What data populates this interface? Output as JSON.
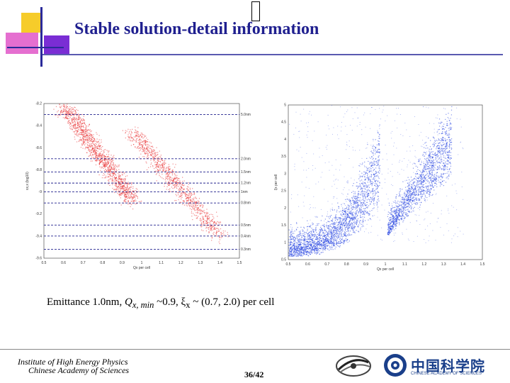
{
  "slide": {
    "title": "Stable solution-detail information",
    "caption_prefix": "Emittance 1.0nm, ",
    "caption_q": "Q",
    "caption_q_sub": "x, min",
    "caption_mid": " ~0.9, ξ",
    "caption_xi_sub": "x",
    "caption_suffix": " ~ (0.7, 2.0) per cell",
    "institute_line1": "Institute of High Energy Physics",
    "institute_line2": "Chinese Academy of Sciences",
    "page_number": "36/42",
    "cas_logo_text": "中国科学院",
    "cas_logo_subtext": "CHINESE ACADEMY OF SCIENCES"
  },
  "chart_data": [
    {
      "type": "scatter",
      "xlabel": "Qx per cell",
      "ylabel": "εx,x (log10)",
      "xlim": [
        0.5,
        1.5
      ],
      "ylim": [
        -9.6,
        -8.2
      ],
      "x_ticks": [
        "0.5",
        "0.6",
        "0.7",
        "0.8",
        "0.9",
        "1",
        "1.1",
        "1.2",
        "1.3",
        "1.4",
        "1.5"
      ],
      "y_ticks": [
        "-8.2",
        "-8.4",
        "-8.6",
        "-8.8",
        "-9",
        "-9.2",
        "-9.4",
        "-9.6"
      ],
      "color": "#e8282a",
      "reference_lines": [
        {
          "label": "5.0nm",
          "y": -8.3
        },
        {
          "label": "2.0nm",
          "y": -8.7
        },
        {
          "label": "1.5nm",
          "y": -8.82
        },
        {
          "label": "1.2nm",
          "y": -8.92
        },
        {
          "label": "1nm",
          "y": -9.0
        },
        {
          "label": "0.5nm",
          "y": -9.3
        },
        {
          "label": "0.8nm",
          "y": -9.1
        },
        {
          "label": "0.4nm",
          "y": -9.4
        },
        {
          "label": "0.3nm",
          "y": -9.52
        }
      ]
    },
    {
      "type": "scatter",
      "xlabel": "Qx per cell",
      "ylabel": "ξx per cell",
      "xlim": [
        0.5,
        1.5
      ],
      "ylim": [
        0.5,
        5
      ],
      "x_ticks": [
        "0.5",
        "0.6",
        "0.7",
        "0.8",
        "0.9",
        "1",
        "1.1",
        "1.2",
        "1.3",
        "1.4",
        "1.5"
      ],
      "y_ticks": [
        "0.5",
        "1",
        "1.5",
        "2",
        "2.5",
        "3",
        "3.5",
        "4",
        "4.5",
        "5"
      ],
      "color": "#1f3ee0"
    }
  ]
}
